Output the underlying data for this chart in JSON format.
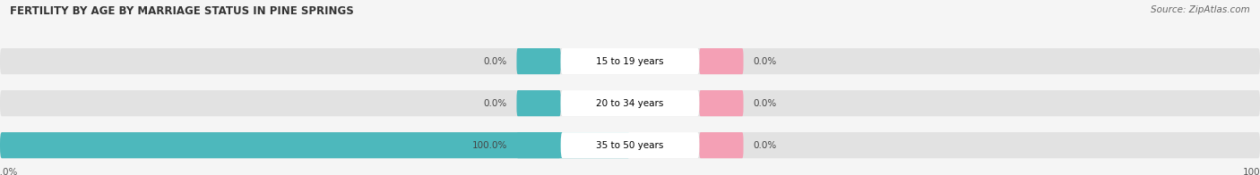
{
  "title": "FERTILITY BY AGE BY MARRIAGE STATUS IN PINE SPRINGS",
  "source": "Source: ZipAtlas.com",
  "categories": [
    "15 to 19 years",
    "20 to 34 years",
    "35 to 50 years"
  ],
  "married_values": [
    0.0,
    0.0,
    100.0
  ],
  "unmarried_values": [
    0.0,
    0.0,
    0.0
  ],
  "married_color": "#4db8bc",
  "unmarried_color": "#f4a0b5",
  "bar_bg_color": "#e2e2e2",
  "label_bg_color": "#ffffff",
  "xlim": [
    -100,
    100
  ],
  "title_fontsize": 8.5,
  "source_fontsize": 7.5,
  "label_fontsize": 7.5,
  "cat_fontsize": 7.5,
  "tick_fontsize": 7.5,
  "fig_bg_color": "#f5f5f5"
}
